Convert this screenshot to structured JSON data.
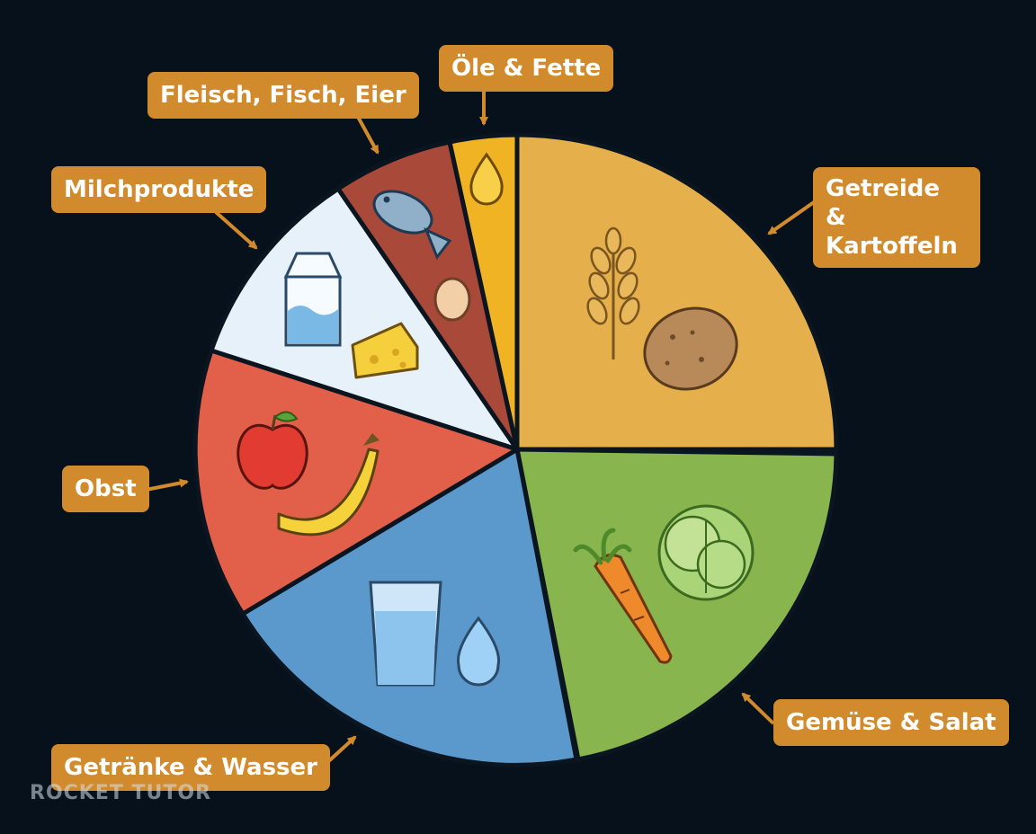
{
  "segments": [
    {
      "key": "getreide",
      "label": "Getreide & Kartoffeln",
      "lines": [
        "Getreide &",
        "Kartoffeln"
      ],
      "color": "#e5b04c",
      "icons": [
        "wheat-icon",
        "potato-icon"
      ]
    },
    {
      "key": "gemuese",
      "label": "Gemüse & Salat",
      "color": "#88b54e",
      "icons": [
        "carrot-icon",
        "lettuce-icon"
      ]
    },
    {
      "key": "getraenke",
      "label": "Getränke & Wasser",
      "color": "#5b98cc",
      "icons": [
        "water-glass-icon",
        "water-drop-icon"
      ]
    },
    {
      "key": "obst",
      "label": "Obst",
      "color": "#e2604a",
      "icons": [
        "apple-icon",
        "banana-icon"
      ]
    },
    {
      "key": "milch",
      "label": "Milchprodukte",
      "color": "#e6f1f9",
      "icons": [
        "milk-carton-icon",
        "cheese-icon"
      ]
    },
    {
      "key": "fleisch",
      "label": "Fleisch, Fisch, Eier",
      "color": "#a9493a",
      "icons": [
        "fish-icon",
        "egg-icon"
      ]
    },
    {
      "key": "oele",
      "label": "Öle & Fette",
      "color": "#f0b324",
      "icons": [
        "oil-drop-icon"
      ]
    }
  ],
  "watermark": "ROCKET TUTOR"
}
